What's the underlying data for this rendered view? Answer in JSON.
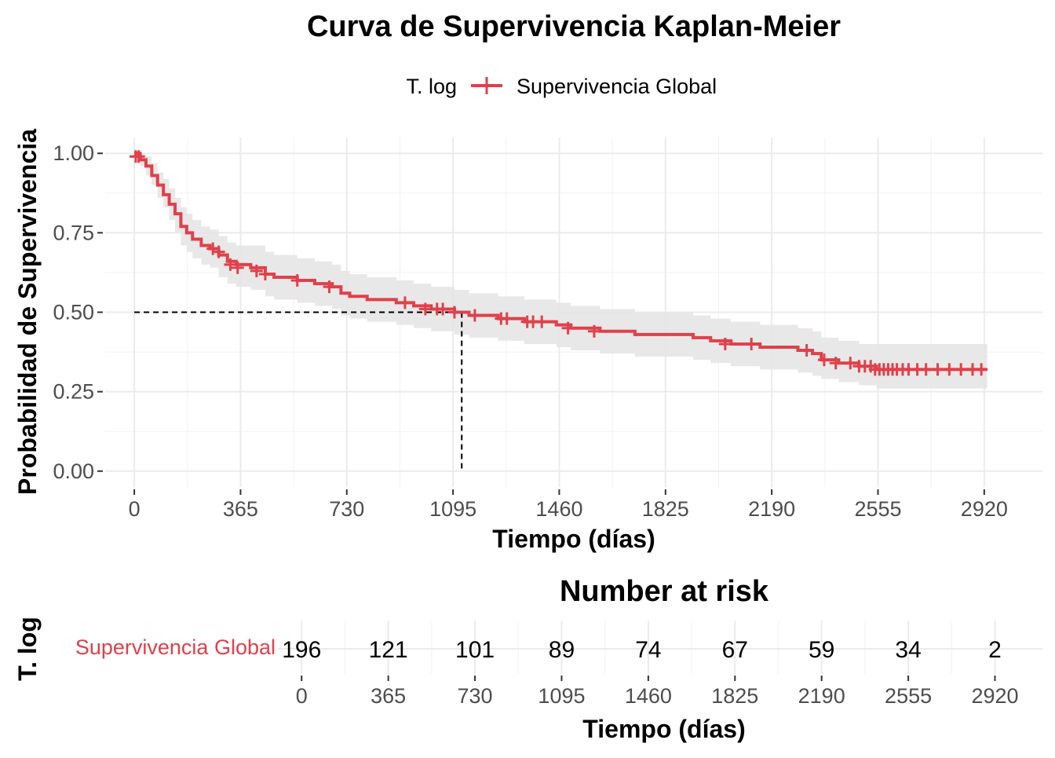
{
  "chart_data": [
    {
      "type": "line",
      "title": "Curva de Supervivencia Kaplan-Meier",
      "xlabel": "Tiempo (días)",
      "ylabel": "Probabilidad de Supervivencia",
      "xlim": [
        -100,
        3120
      ],
      "ylim": [
        -0.05,
        1.05
      ],
      "x_ticks": [
        0,
        365,
        730,
        1095,
        1460,
        1825,
        2190,
        2555,
        2920
      ],
      "y_ticks": [
        0,
        0.25,
        0.5,
        0.75,
        1.0
      ],
      "y_tick_labels": [
        "0.00",
        "0.25",
        "0.50",
        "0.75",
        "1.00"
      ],
      "grid": true,
      "legend": {
        "title": "T. log",
        "position": "top",
        "entries": [
          "Supervivencia Global"
        ]
      },
      "median_survival": {
        "y": 0.5,
        "x": 1125
      },
      "series": [
        {
          "name": "Supervivencia Global",
          "color": "#e0404a",
          "step": [
            [
              0,
              1.0
            ],
            [
              20,
              0.98
            ],
            [
              40,
              0.96
            ],
            [
              60,
              0.93
            ],
            [
              80,
              0.9
            ],
            [
              100,
              0.87
            ],
            [
              120,
              0.84
            ],
            [
              140,
              0.81
            ],
            [
              160,
              0.77
            ],
            [
              180,
              0.75
            ],
            [
              200,
              0.73
            ],
            [
              230,
              0.71
            ],
            [
              260,
              0.7
            ],
            [
              290,
              0.68
            ],
            [
              320,
              0.66
            ],
            [
              350,
              0.65
            ],
            [
              400,
              0.64
            ],
            [
              450,
              0.62
            ],
            [
              480,
              0.61
            ],
            [
              560,
              0.6
            ],
            [
              620,
              0.59
            ],
            [
              680,
              0.58
            ],
            [
              710,
              0.56
            ],
            [
              740,
              0.55
            ],
            [
              800,
              0.54
            ],
            [
              900,
              0.53
            ],
            [
              960,
              0.52
            ],
            [
              1020,
              0.51
            ],
            [
              1100,
              0.5
            ],
            [
              1150,
              0.49
            ],
            [
              1250,
              0.48
            ],
            [
              1340,
              0.47
            ],
            [
              1450,
              0.46
            ],
            [
              1500,
              0.45
            ],
            [
              1600,
              0.44
            ],
            [
              1720,
              0.43
            ],
            [
              1920,
              0.42
            ],
            [
              1980,
              0.41
            ],
            [
              2050,
              0.4
            ],
            [
              2150,
              0.39
            ],
            [
              2280,
              0.38
            ],
            [
              2330,
              0.37
            ],
            [
              2360,
              0.35
            ],
            [
              2420,
              0.34
            ],
            [
              2490,
              0.33
            ],
            [
              2550,
              0.32
            ],
            [
              2930,
              0.32
            ]
          ],
          "ci_lower": [
            [
              0,
              1.0
            ],
            [
              20,
              0.96
            ],
            [
              40,
              0.93
            ],
            [
              60,
              0.9
            ],
            [
              80,
              0.86
            ],
            [
              100,
              0.83
            ],
            [
              120,
              0.79
            ],
            [
              140,
              0.75
            ],
            [
              160,
              0.71
            ],
            [
              180,
              0.69
            ],
            [
              200,
              0.67
            ],
            [
              230,
              0.65
            ],
            [
              260,
              0.64
            ],
            [
              290,
              0.61
            ],
            [
              320,
              0.59
            ],
            [
              350,
              0.58
            ],
            [
              400,
              0.57
            ],
            [
              450,
              0.55
            ],
            [
              480,
              0.54
            ],
            [
              560,
              0.53
            ],
            [
              620,
              0.52
            ],
            [
              680,
              0.51
            ],
            [
              710,
              0.49
            ],
            [
              740,
              0.48
            ],
            [
              800,
              0.47
            ],
            [
              900,
              0.46
            ],
            [
              960,
              0.45
            ],
            [
              1020,
              0.44
            ],
            [
              1100,
              0.43
            ],
            [
              1150,
              0.42
            ],
            [
              1250,
              0.41
            ],
            [
              1340,
              0.4
            ],
            [
              1450,
              0.39
            ],
            [
              1500,
              0.38
            ],
            [
              1600,
              0.37
            ],
            [
              1720,
              0.36
            ],
            [
              1920,
              0.35
            ],
            [
              1980,
              0.34
            ],
            [
              2050,
              0.33
            ],
            [
              2150,
              0.32
            ],
            [
              2280,
              0.31
            ],
            [
              2330,
              0.3
            ],
            [
              2360,
              0.29
            ],
            [
              2420,
              0.28
            ],
            [
              2490,
              0.27
            ],
            [
              2550,
              0.26
            ],
            [
              2930,
              0.26
            ]
          ],
          "ci_upper": [
            [
              0,
              1.0
            ],
            [
              20,
              1.0
            ],
            [
              40,
              0.99
            ],
            [
              60,
              0.97
            ],
            [
              80,
              0.94
            ],
            [
              100,
              0.92
            ],
            [
              120,
              0.89
            ],
            [
              140,
              0.86
            ],
            [
              160,
              0.83
            ],
            [
              180,
              0.81
            ],
            [
              200,
              0.79
            ],
            [
              230,
              0.77
            ],
            [
              260,
              0.76
            ],
            [
              290,
              0.74
            ],
            [
              320,
              0.72
            ],
            [
              350,
              0.71
            ],
            [
              400,
              0.71
            ],
            [
              450,
              0.69
            ],
            [
              480,
              0.68
            ],
            [
              560,
              0.67
            ],
            [
              620,
              0.66
            ],
            [
              680,
              0.65
            ],
            [
              710,
              0.63
            ],
            [
              740,
              0.62
            ],
            [
              800,
              0.61
            ],
            [
              900,
              0.6
            ],
            [
              960,
              0.59
            ],
            [
              1020,
              0.58
            ],
            [
              1100,
              0.57
            ],
            [
              1150,
              0.56
            ],
            [
              1250,
              0.55
            ],
            [
              1340,
              0.54
            ],
            [
              1450,
              0.53
            ],
            [
              1500,
              0.52
            ],
            [
              1600,
              0.51
            ],
            [
              1720,
              0.5
            ],
            [
              1920,
              0.49
            ],
            [
              1980,
              0.48
            ],
            [
              2050,
              0.47
            ],
            [
              2150,
              0.46
            ],
            [
              2280,
              0.45
            ],
            [
              2330,
              0.44
            ],
            [
              2360,
              0.42
            ],
            [
              2420,
              0.41
            ],
            [
              2490,
              0.4
            ],
            [
              2550,
              0.4
            ],
            [
              2930,
              0.4
            ]
          ],
          "censored": [
            [
              5,
              0.99
            ],
            [
              15,
              0.99
            ],
            [
              270,
              0.7
            ],
            [
              290,
              0.69
            ],
            [
              330,
              0.65
            ],
            [
              355,
              0.64
            ],
            [
              420,
              0.63
            ],
            [
              450,
              0.62
            ],
            [
              560,
              0.6
            ],
            [
              670,
              0.58
            ],
            [
              930,
              0.53
            ],
            [
              1000,
              0.51
            ],
            [
              1040,
              0.51
            ],
            [
              1060,
              0.51
            ],
            [
              1100,
              0.5
            ],
            [
              1170,
              0.49
            ],
            [
              1260,
              0.48
            ],
            [
              1280,
              0.48
            ],
            [
              1350,
              0.47
            ],
            [
              1370,
              0.47
            ],
            [
              1400,
              0.47
            ],
            [
              1490,
              0.45
            ],
            [
              1580,
              0.44
            ],
            [
              2030,
              0.4
            ],
            [
              2120,
              0.4
            ],
            [
              2310,
              0.38
            ],
            [
              2370,
              0.35
            ],
            [
              2410,
              0.34
            ],
            [
              2460,
              0.34
            ],
            [
              2490,
              0.33
            ],
            [
              2510,
              0.33
            ],
            [
              2530,
              0.33
            ],
            [
              2545,
              0.32
            ],
            [
              2560,
              0.32
            ],
            [
              2575,
              0.32
            ],
            [
              2590,
              0.32
            ],
            [
              2605,
              0.32
            ],
            [
              2620,
              0.32
            ],
            [
              2640,
              0.32
            ],
            [
              2660,
              0.32
            ],
            [
              2690,
              0.32
            ],
            [
              2720,
              0.32
            ],
            [
              2760,
              0.32
            ],
            [
              2800,
              0.32
            ],
            [
              2840,
              0.32
            ],
            [
              2880,
              0.32
            ],
            [
              2910,
              0.32
            ]
          ]
        }
      ]
    },
    {
      "type": "table",
      "title": "Number at risk",
      "xlabel": "Tiempo (días)",
      "ylabel": "T. log",
      "xlim": [
        -100,
        3120
      ],
      "x_ticks": [
        0,
        365,
        730,
        1095,
        1460,
        1825,
        2190,
        2555,
        2920
      ],
      "strata": "Supervivencia Global",
      "strata_color": "#e0404a",
      "values": [
        196,
        121,
        101,
        89,
        74,
        67,
        59,
        34,
        2
      ]
    }
  ]
}
